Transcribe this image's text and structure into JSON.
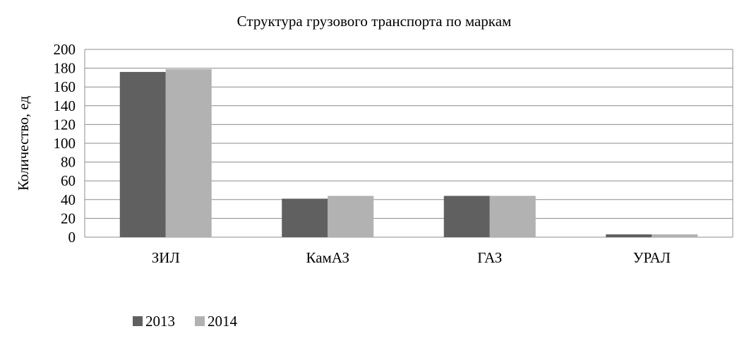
{
  "chart_data": {
    "type": "bar",
    "title": "Структура грузового транспорта по маркам",
    "xlabel": "",
    "ylabel": "Количество, ед",
    "ylim": [
      0,
      200
    ],
    "yticks": [
      0,
      20,
      40,
      60,
      80,
      100,
      120,
      140,
      160,
      180,
      200
    ],
    "grid": true,
    "legend": "bottom-left",
    "categories": [
      "ЗИЛ",
      "КамАЗ",
      "ГАЗ",
      "УРАЛ"
    ],
    "series": [
      {
        "name": "2013",
        "color": "#606060",
        "values": [
          176,
          41,
          44,
          3
        ]
      },
      {
        "name": "2014",
        "color": "#b2b2b2",
        "values": [
          179,
          44,
          44,
          3
        ]
      }
    ]
  }
}
